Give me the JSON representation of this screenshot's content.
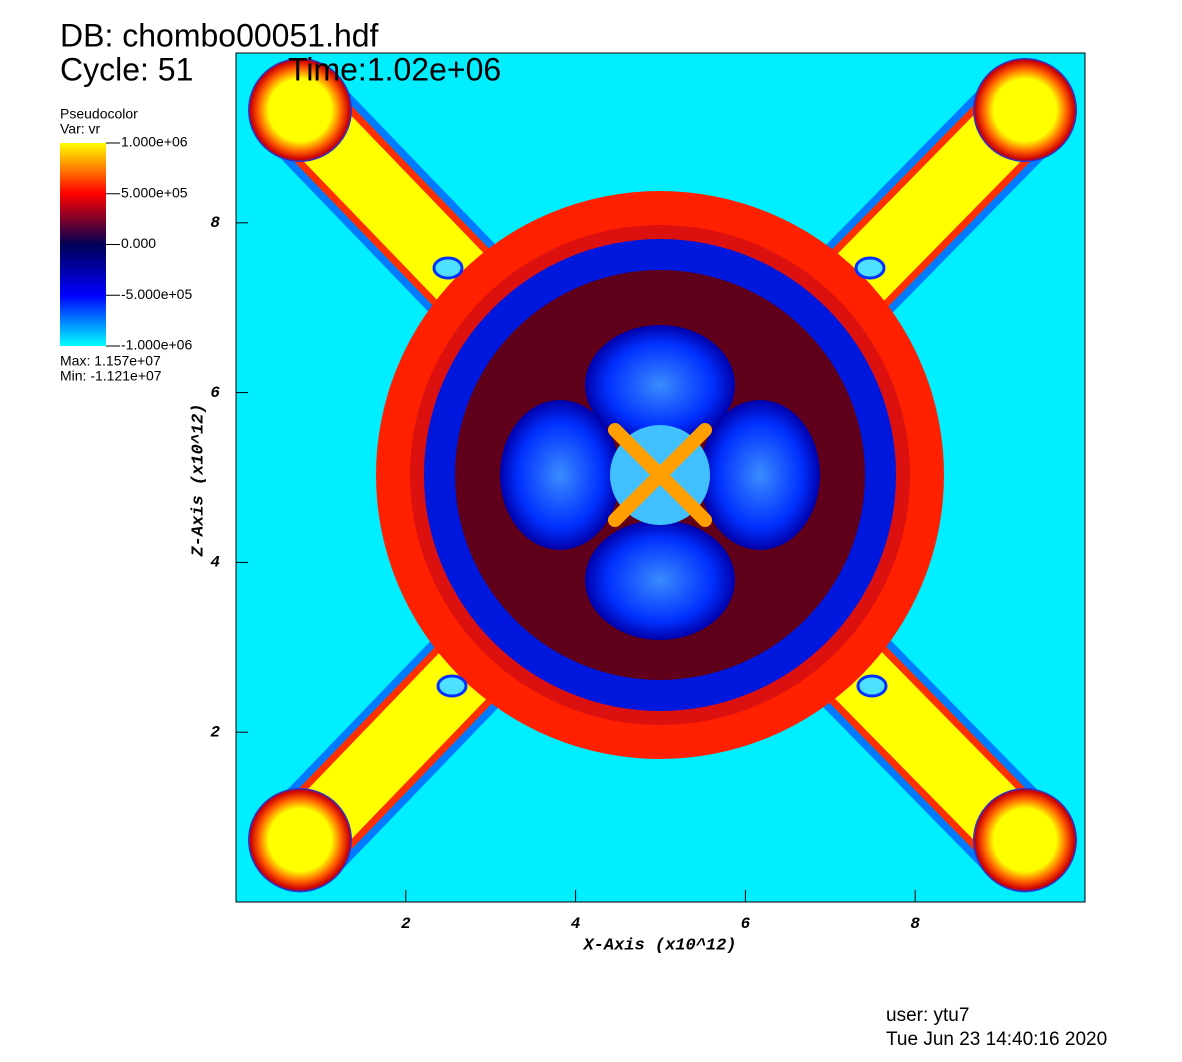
{
  "chart_data": {
    "type": "pseudocolor",
    "title": "DB: chombo00051.hdf",
    "cycle": "Cycle: 51",
    "time": "Time:1.02e+06",
    "legend_title": "Pseudocolor",
    "legend_var": "Var: vr",
    "legend_max": "Max:  1.157e+07",
    "legend_min": "Min: -1.121e+07",
    "x_label": "X-Axis (x10^12)",
    "y_label": "Z-Axis (x10^12)",
    "user": "user: ytu7",
    "date": "Tue Jun 23 14:40:16 2020",
    "xlim": [
      0,
      10
    ],
    "ylim": [
      0,
      10
    ],
    "xticks": [
      2,
      4,
      6,
      8
    ],
    "yticks": [
      2,
      4,
      6,
      8
    ],
    "clim": [
      -1000000,
      1000000
    ],
    "cticks": [
      {
        "value": 1000000,
        "label": "1.000e+06"
      },
      {
        "value": 500000,
        "label": "5.000e+05"
      },
      {
        "value": 0,
        "label": "0.000"
      },
      {
        "value": -500000,
        "label": "-5.000e+05"
      },
      {
        "value": -1000000,
        "label": "-1.000e+06"
      }
    ],
    "colormap": [
      "#00ffff",
      "#0000ff",
      "#000055",
      "#ff0000",
      "#ffff00"
    ]
  }
}
